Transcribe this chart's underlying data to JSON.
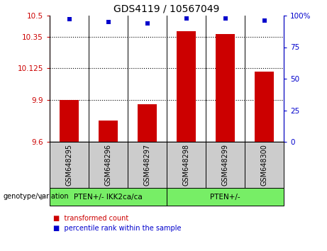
{
  "title": "GDS4119 / 10567049",
  "samples": [
    "GSM648295",
    "GSM648296",
    "GSM648297",
    "GSM648298",
    "GSM648299",
    "GSM648300"
  ],
  "bar_values": [
    9.9,
    9.75,
    9.87,
    10.39,
    10.37,
    10.1
  ],
  "percentile_values": [
    97,
    95,
    94,
    98,
    98,
    96
  ],
  "y_min": 9.6,
  "y_max": 10.5,
  "y_ticks": [
    9.6,
    9.9,
    10.125,
    10.35,
    10.5
  ],
  "y_tick_labels": [
    "9.6",
    "9.9",
    "10.125",
    "10.35",
    "10.5"
  ],
  "y2_ticks": [
    0,
    25,
    50,
    75,
    100
  ],
  "y2_tick_labels": [
    "0",
    "25",
    "50",
    "75",
    "100%"
  ],
  "bar_color": "#cc0000",
  "dot_color": "#0000cc",
  "group1_label": "PTEN+/- IKK2ca/ca",
  "group2_label": "PTEN+/-",
  "group_bg_color": "#77ee66",
  "sample_bg_color": "#cccccc",
  "legend_bar_label": "transformed count",
  "legend_dot_label": "percentile rank within the sample",
  "genotype_label": "genotype/variation"
}
